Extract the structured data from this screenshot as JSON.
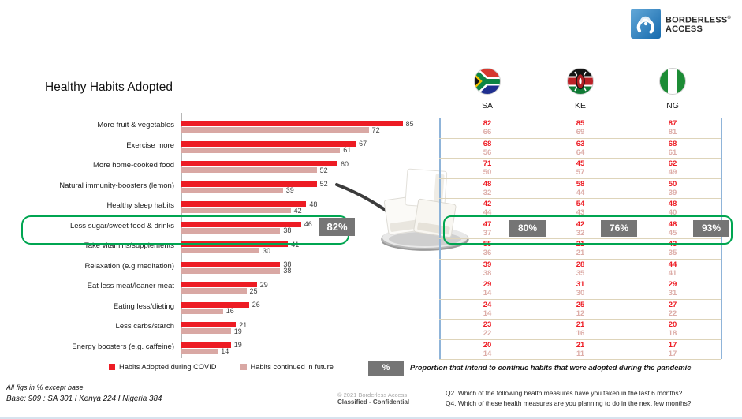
{
  "title": "Healthy Habits Adopted",
  "logo": {
    "line1": "BORDERLESS",
    "line2": "ACCESS",
    "reg": "®"
  },
  "countries": [
    {
      "code": "SA"
    },
    {
      "code": "KE"
    },
    {
      "code": "NG"
    }
  ],
  "chart_data": {
    "type": "bar",
    "orientation": "horizontal",
    "title": "Healthy Habits Adopted",
    "categories": [
      "More fruit & vegetables",
      "Exercise more",
      "More home-cooked food",
      "Natural immunity-boosters (lemon)",
      "Healthy sleep habits",
      "Less sugar/sweet food & drinks",
      "Take vitamins/supplements",
      "Relaxation (e.g meditation)",
      "Eat less meat/leaner meat",
      "Eating less/dieting",
      "Less carbs/starch",
      "Energy boosters (e.g. caffeine)"
    ],
    "series": [
      {
        "name": "Habits Adopted during COVID",
        "color": "#ed1c24",
        "values": [
          85,
          67,
          60,
          52,
          48,
          46,
          41,
          38,
          29,
          26,
          21,
          19
        ]
      },
      {
        "name": "Habits continued in future",
        "color": "#d9a8a4",
        "values": [
          72,
          61,
          52,
          39,
          42,
          38,
          30,
          38,
          25,
          16,
          19,
          14
        ]
      }
    ],
    "xlim": [
      0,
      100
    ],
    "grid": false,
    "legend_position": "bottom",
    "highlight": {
      "category": "Less sugar/sweet food & drinks",
      "badge": "82%"
    }
  },
  "table": {
    "columns": [
      "SA",
      "KE",
      "NG"
    ],
    "row_value_labels": [
      "Adopted during COVID",
      "Continued in future"
    ],
    "rows": [
      [
        [
          82,
          66
        ],
        [
          85,
          69
        ],
        [
          87,
          81
        ]
      ],
      [
        [
          68,
          56
        ],
        [
          63,
          64
        ],
        [
          68,
          61
        ]
      ],
      [
        [
          71,
          50
        ],
        [
          45,
          57
        ],
        [
          62,
          49
        ]
      ],
      [
        [
          48,
          32
        ],
        [
          58,
          44
        ],
        [
          50,
          39
        ]
      ],
      [
        [
          42,
          44
        ],
        [
          54,
          43
        ],
        [
          48,
          40
        ]
      ],
      [
        [
          47,
          37
        ],
        [
          42,
          32
        ],
        [
          48,
          45
        ]
      ],
      [
        [
          55,
          36
        ],
        [
          21,
          21
        ],
        [
          43,
          35
        ]
      ],
      [
        [
          39,
          38
        ],
        [
          28,
          35
        ],
        [
          44,
          41
        ]
      ],
      [
        [
          29,
          14
        ],
        [
          31,
          30
        ],
        [
          29,
          31
        ]
      ],
      [
        [
          24,
          14
        ],
        [
          25,
          12
        ],
        [
          27,
          22
        ]
      ],
      [
        [
          23,
          22
        ],
        [
          21,
          16
        ],
        [
          20,
          18
        ]
      ],
      [
        [
          20,
          14
        ],
        [
          21,
          11
        ],
        [
          17,
          17
        ]
      ]
    ],
    "highlight_row_index": 5,
    "highlight_badges": [
      "80%",
      "76%",
      "93%"
    ]
  },
  "percent_note": {
    "badge": "%",
    "text": "Proportion that intend to continue habits that were adopted during the pandemic"
  },
  "footer": {
    "note_line1": "All figs in % except base",
    "note_line2": "Base: 909 : SA 301 I Kenya 224 I Nigeria 384",
    "copyright": "© 2021 Borderless Access",
    "classification": "Classified - Confidential",
    "q2": "Q2. Which of the following health measures have you taken in the last 6 months?",
    "q4": "Q4. Which of these health measures are you planning to do in the next few months?"
  }
}
